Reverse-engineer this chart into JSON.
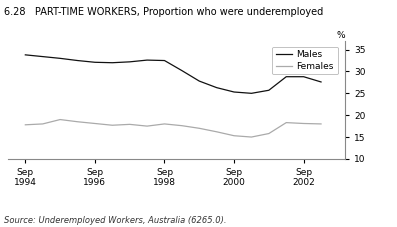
{
  "title": "6.28   PART-TIME WORKERS, Proportion who were underemployed",
  "source": "Source: Underemployed Workers, Australia (6265.0).",
  "ylabel": "%",
  "ylim": [
    10,
    37
  ],
  "yticks": [
    10,
    15,
    20,
    25,
    30,
    35
  ],
  "males_x": [
    1994.0,
    1994.5,
    1995.0,
    1995.5,
    1996.0,
    1996.5,
    1997.0,
    1997.5,
    1998.0,
    1998.5,
    1999.0,
    1999.5,
    2000.0,
    2000.5,
    2001.0,
    2001.5,
    2002.0,
    2002.5
  ],
  "males_y": [
    33.8,
    33.4,
    33.0,
    32.5,
    32.1,
    32.0,
    32.2,
    32.6,
    32.5,
    30.2,
    27.8,
    26.3,
    25.3,
    25.0,
    25.7,
    28.8,
    28.8,
    27.6
  ],
  "females_x": [
    1994.0,
    1994.5,
    1995.0,
    1995.5,
    1996.0,
    1996.5,
    1997.0,
    1997.5,
    1998.0,
    1998.5,
    1999.0,
    1999.5,
    2000.0,
    2000.5,
    2001.0,
    2001.5,
    2002.0,
    2002.5
  ],
  "females_y": [
    17.8,
    18.0,
    19.0,
    18.5,
    18.1,
    17.7,
    17.9,
    17.5,
    18.0,
    17.6,
    17.0,
    16.2,
    15.3,
    15.0,
    15.8,
    18.3,
    18.1,
    18.0
  ],
  "males_color": "#111111",
  "females_color": "#aaaaaa",
  "background_color": "#ffffff",
  "legend_labels": [
    "Males",
    "Females"
  ],
  "xtick_positions": [
    1994,
    1996,
    1998,
    2000,
    2002
  ],
  "xtick_labels": [
    "Sep\n1994",
    "Sep\n1996",
    "Sep\n1998",
    "Sep\n2000",
    "Sep\n2002"
  ]
}
